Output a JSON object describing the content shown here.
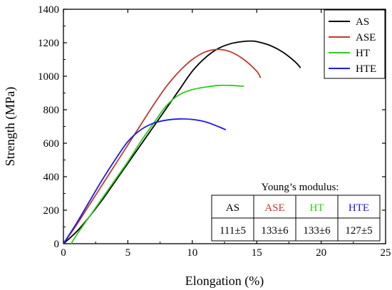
{
  "chart_data": {
    "type": "line",
    "xlabel": "Elongation (%)",
    "ylabel": "Strength (MPa)",
    "xlim": [
      0,
      25
    ],
    "ylim": [
      0,
      1400
    ],
    "xticks": [
      "0",
      "5",
      "10",
      "15",
      "20",
      "25"
    ],
    "yticks": [
      "0",
      "200",
      "400",
      "600",
      "800",
      "1000",
      "1200",
      "1400"
    ],
    "legend_position": "top-right",
    "series": [
      {
        "name": "AS",
        "color": "#000000",
        "x": [
          0,
          1,
          2,
          3,
          4,
          5,
          6,
          7,
          8,
          9,
          10,
          11,
          12,
          13,
          14,
          14.5,
          15,
          16,
          17,
          18,
          18.4
        ],
        "y": [
          0,
          70,
          160,
          260,
          370,
          480,
          590,
          700,
          810,
          920,
          1030,
          1110,
          1165,
          1195,
          1208,
          1210,
          1207,
          1185,
          1145,
          1085,
          1050
        ]
      },
      {
        "name": "ASE",
        "color": "#c0392b",
        "x": [
          0,
          1,
          2,
          3,
          4,
          5,
          6,
          7,
          8,
          9,
          10,
          11,
          12,
          13,
          14,
          15,
          15.3
        ],
        "y": [
          0,
          110,
          230,
          350,
          470,
          590,
          710,
          830,
          940,
          1030,
          1100,
          1145,
          1160,
          1145,
          1100,
          1030,
          990
        ]
      },
      {
        "name": "HT",
        "color": "#2ecc1a",
        "x": [
          0.6,
          1,
          2,
          3,
          4,
          5,
          6,
          7,
          8,
          9,
          10,
          11,
          12,
          13,
          14
        ],
        "y": [
          0,
          50,
          160,
          270,
          380,
          490,
          610,
          720,
          825,
          890,
          920,
          935,
          945,
          945,
          940
        ]
      },
      {
        "name": "HTE",
        "color": "#1a1ae6",
        "x": [
          0,
          1,
          2,
          3,
          4,
          5,
          6,
          7,
          8,
          9,
          10,
          11,
          12,
          12.6
        ],
        "y": [
          0,
          120,
          250,
          380,
          500,
          610,
          680,
          720,
          738,
          745,
          742,
          728,
          700,
          680
        ]
      }
    ]
  },
  "modulus_table": {
    "title": "Young’s modulus:",
    "headers": [
      {
        "label": "AS",
        "color": "#000000"
      },
      {
        "label": "ASE",
        "color": "#c0392b"
      },
      {
        "label": "HT",
        "color": "#2ecc1a"
      },
      {
        "label": "HTE",
        "color": "#1a1ae6"
      }
    ],
    "values": [
      "111±5",
      "133±6",
      "133±6",
      "127±5"
    ]
  }
}
